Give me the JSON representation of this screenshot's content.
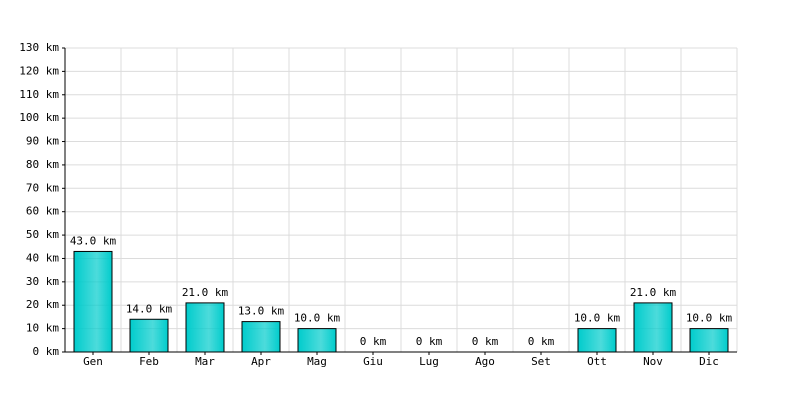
{
  "chart_data": {
    "type": "bar",
    "categories": [
      "Gen",
      "Feb",
      "Mar",
      "Apr",
      "Mag",
      "Giu",
      "Lug",
      "Ago",
      "Set",
      "Ott",
      "Nov",
      "Dic"
    ],
    "values": [
      43.0,
      14.0,
      21.0,
      13.0,
      10.0,
      0,
      0,
      0,
      0,
      10.0,
      21.0,
      10.0
    ],
    "value_labels": [
      "43.0 km",
      "14.0 km",
      "21.0 km",
      "13.0 km",
      "10.0 km",
      "0 km",
      "0 km",
      "0 km",
      "0 km",
      "10.0 km",
      "21.0 km",
      "10.0 km"
    ],
    "color": "#00cccc",
    "ylim": [
      0,
      130
    ],
    "yticks": [
      {
        "value": 0,
        "label": "0 km"
      },
      {
        "value": 10,
        "label": "10 km"
      },
      {
        "value": 20,
        "label": "20 km"
      },
      {
        "value": 30,
        "label": "30 km"
      },
      {
        "value": 40,
        "label": "40 km"
      },
      {
        "value": 50,
        "label": "50 km"
      },
      {
        "value": 60,
        "label": "60 km"
      },
      {
        "value": 70,
        "label": "70 km"
      },
      {
        "value": 80,
        "label": "80 km"
      },
      {
        "value": 90,
        "label": "90 km"
      },
      {
        "value": 100,
        "label": "100 km"
      },
      {
        "value": 110,
        "label": "110 km"
      },
      {
        "value": 120,
        "label": "120 km"
      },
      {
        "value": 130,
        "label": "130 km"
      }
    ],
    "grid": true
  }
}
